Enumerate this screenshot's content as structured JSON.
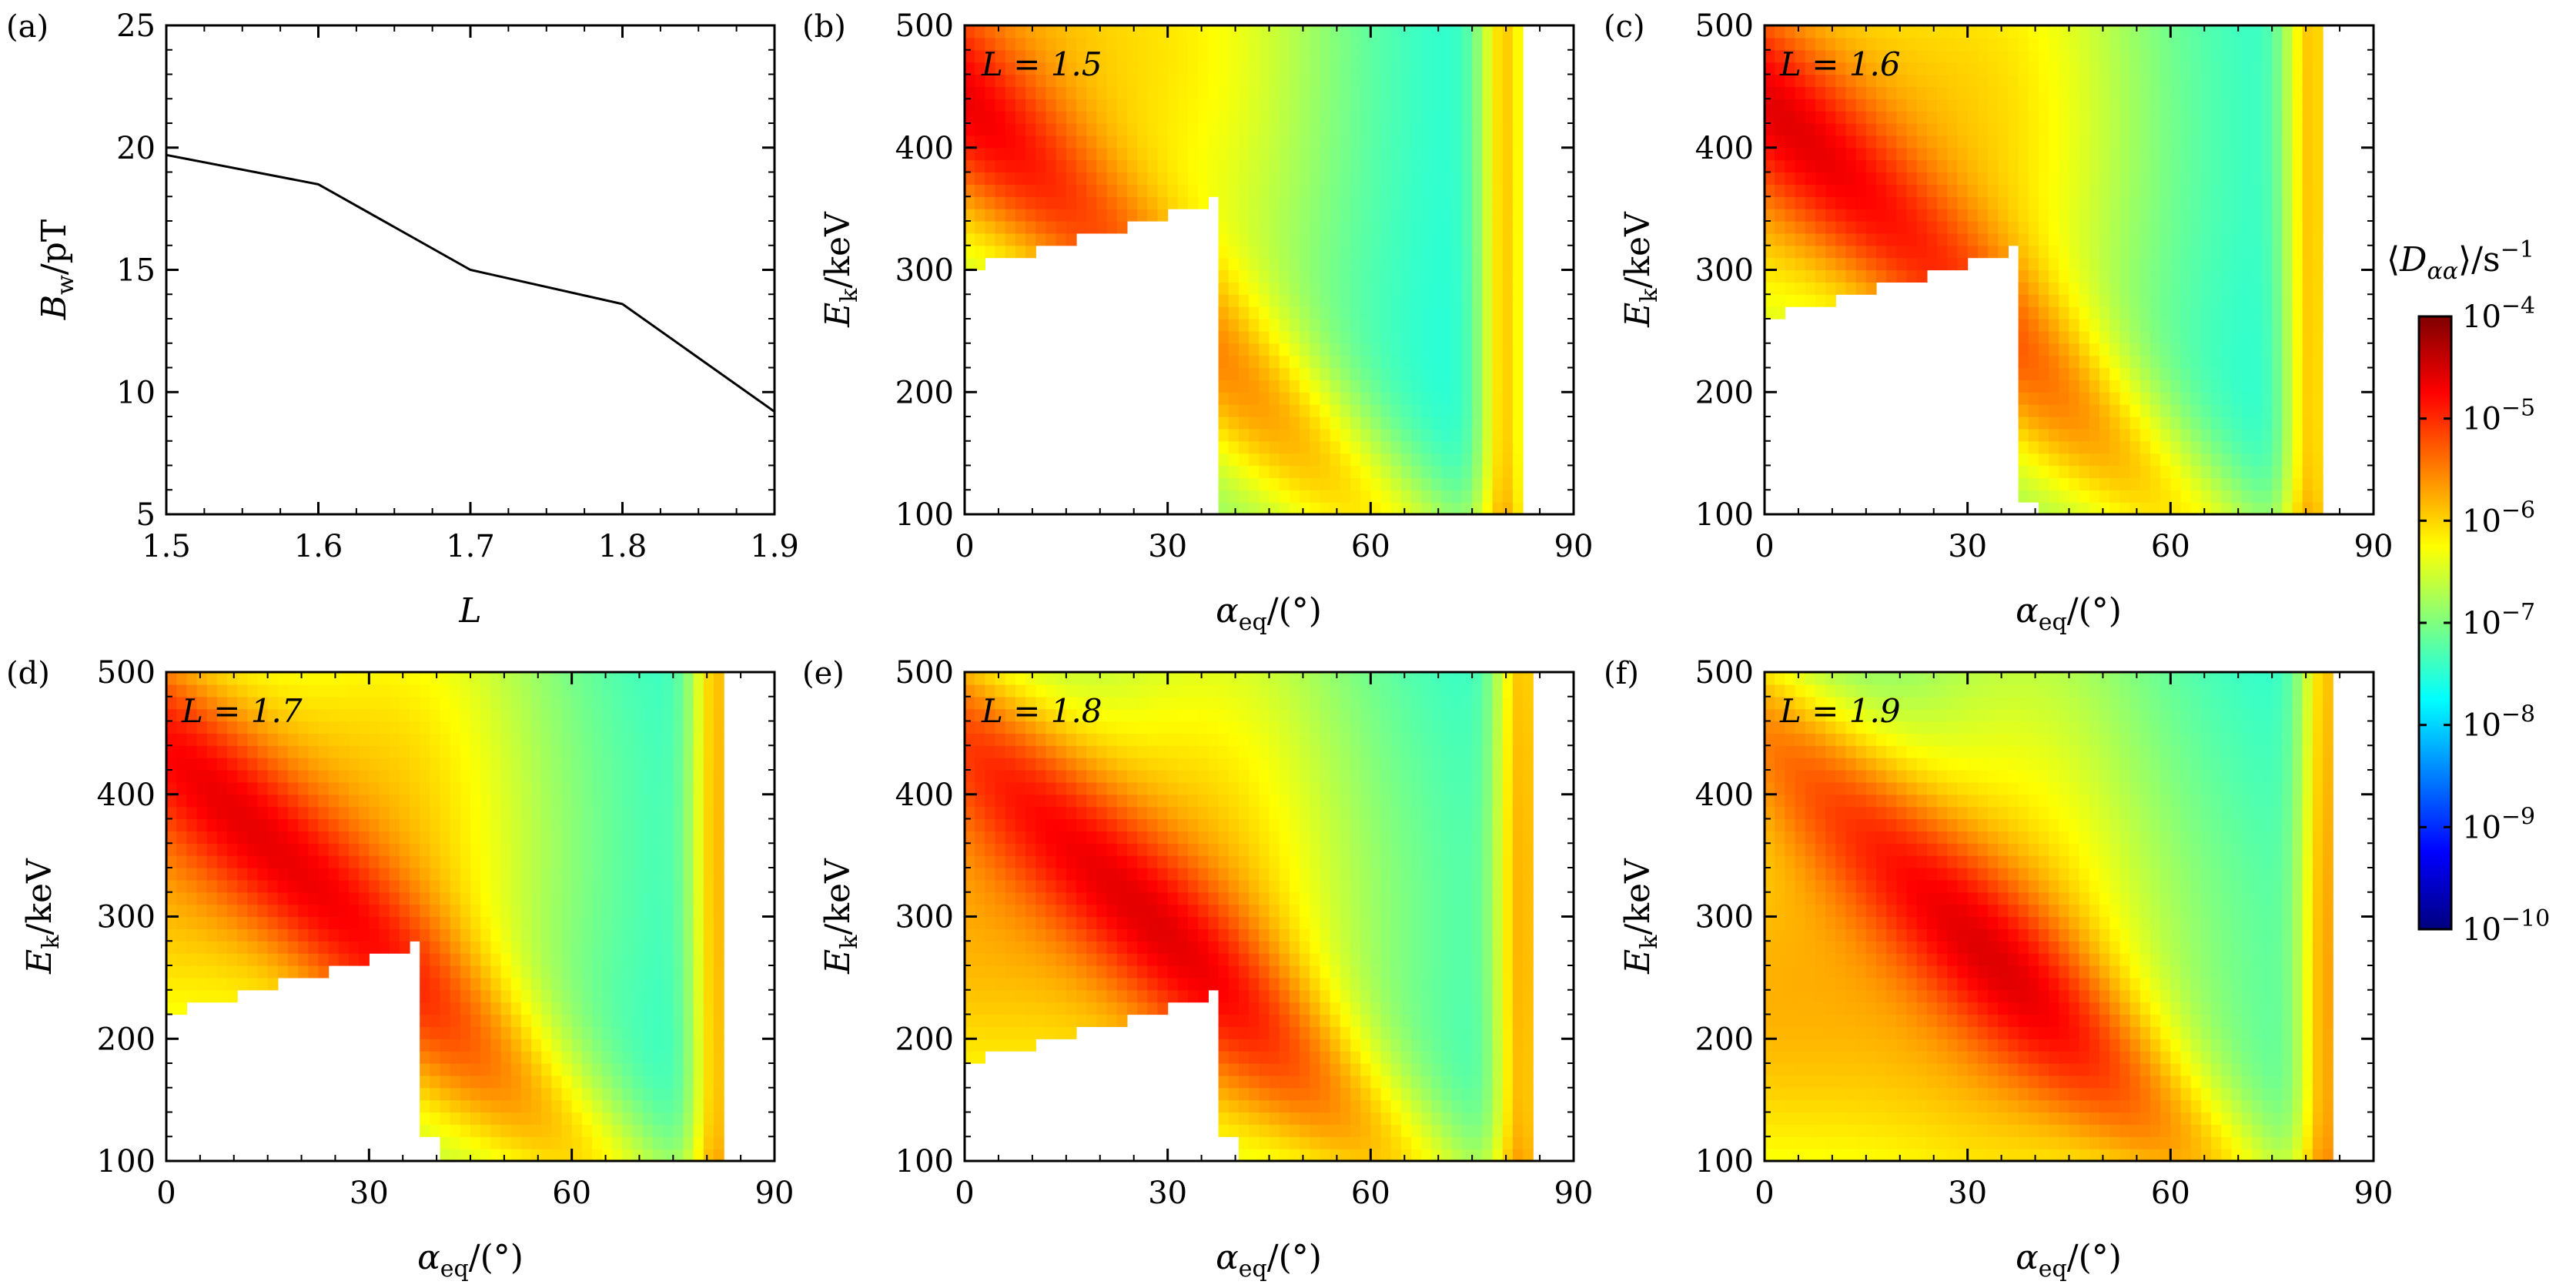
{
  "chart_data": [
    {
      "panel": "(a)",
      "type": "line",
      "xlabel": "L",
      "ylabel": "B_w/pT",
      "xticks": [
        "1.5",
        "1.6",
        "1.7",
        "1.8",
        "1.9"
      ],
      "yticks": [
        "5",
        "10",
        "15",
        "20",
        "25"
      ],
      "xlim": [
        1.5,
        1.9
      ],
      "ylim": [
        5,
        25
      ],
      "x": [
        1.5,
        1.6,
        1.7,
        1.8,
        1.9
      ],
      "values": [
        19.7,
        18.5,
        15.0,
        13.6,
        9.2
      ]
    },
    {
      "panel": "(b)",
      "type": "heatmap",
      "annotation": "L = 1.5",
      "L": 1.5,
      "xlabel": "α_eq/(°)",
      "ylabel": "E_k/keV",
      "xticks": [
        "0",
        "30",
        "60",
        "90"
      ],
      "yticks": [
        "100",
        "200",
        "300",
        "400",
        "500"
      ],
      "xlim": [
        0,
        90
      ],
      "ylim": [
        100,
        500
      ]
    },
    {
      "panel": "(c)",
      "type": "heatmap",
      "annotation": "L = 1.6",
      "L": 1.6,
      "xlabel": "α_eq/(°)",
      "ylabel": "E_k/keV",
      "xticks": [
        "0",
        "30",
        "60",
        "90"
      ],
      "yticks": [
        "100",
        "200",
        "300",
        "400",
        "500"
      ],
      "xlim": [
        0,
        90
      ],
      "ylim": [
        100,
        500
      ]
    },
    {
      "panel": "(d)",
      "type": "heatmap",
      "annotation": "L = 1.7",
      "L": 1.7,
      "xlabel": "α_eq/(°)",
      "ylabel": "E_k/keV",
      "xticks": [
        "0",
        "30",
        "60",
        "90"
      ],
      "yticks": [
        "100",
        "200",
        "300",
        "400",
        "500"
      ],
      "xlim": [
        0,
        90
      ],
      "ylim": [
        100,
        500
      ]
    },
    {
      "panel": "(e)",
      "type": "heatmap",
      "annotation": "L = 1.8",
      "L": 1.8,
      "xlabel": "α_eq/(°)",
      "ylabel": "E_k/keV",
      "xticks": [
        "0",
        "30",
        "60",
        "90"
      ],
      "yticks": [
        "100",
        "200",
        "300",
        "400",
        "500"
      ],
      "xlim": [
        0,
        90
      ],
      "ylim": [
        100,
        500
      ]
    },
    {
      "panel": "(f)",
      "type": "heatmap",
      "annotation": "L = 1.9",
      "L": 1.9,
      "xlabel": "α_eq/(°)",
      "ylabel": "E_k/keV",
      "xticks": [
        "0",
        "30",
        "60",
        "90"
      ],
      "yticks": [
        "100",
        "200",
        "300",
        "400",
        "500"
      ],
      "xlim": [
        0,
        90
      ],
      "ylim": [
        100,
        500
      ]
    }
  ],
  "colorbar": {
    "label": "⟨D_αα⟩/s^−1",
    "scale": "log",
    "range": [
      1e-10,
      0.0001
    ],
    "ticks": [
      "10^−4",
      "10^−5",
      "10^−6",
      "10^−7",
      "10^−8",
      "10^−9",
      "10^−10"
    ],
    "colors": [
      "#00007f",
      "#0000ff",
      "#007fff",
      "#00ffff",
      "#7fff7f",
      "#ffff00",
      "#ff7f00",
      "#ff0000",
      "#7f0000"
    ]
  }
}
